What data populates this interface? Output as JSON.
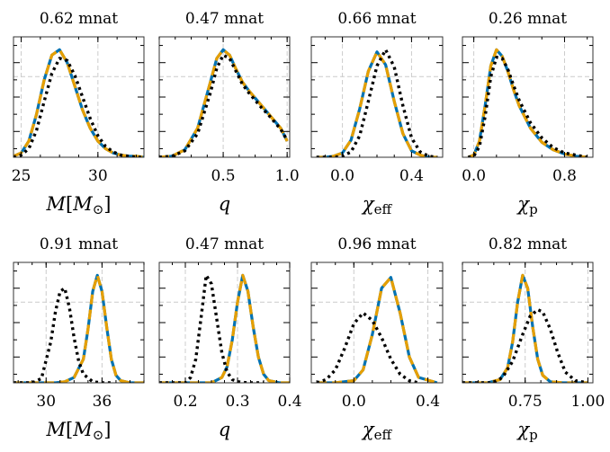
{
  "chart_data": [
    {
      "type": "line",
      "title": "0.62 mnat",
      "xlabel": "M[M⊙]",
      "xlim": [
        24.5,
        33
      ],
      "xticks": [
        25,
        30
      ],
      "xtick_labels": [
        "25",
        "30"
      ],
      "series": [
        {
          "color": "#0072b2",
          "style": "solid",
          "x": [
            24.5,
            25,
            25.5,
            26,
            26.5,
            27,
            27.5,
            28,
            28.5,
            29,
            29.5,
            30,
            30.5,
            31,
            31.5,
            32,
            32.5,
            33
          ],
          "y": [
            0.01,
            0.04,
            0.15,
            0.4,
            0.72,
            0.95,
            1.0,
            0.88,
            0.66,
            0.44,
            0.27,
            0.15,
            0.08,
            0.04,
            0.02,
            0.01,
            0.01,
            0.0
          ]
        },
        {
          "color": "#e69f00",
          "style": "dashed",
          "x": [
            24.5,
            25,
            25.5,
            26,
            26.5,
            27,
            27.5,
            28,
            28.5,
            29,
            29.5,
            30,
            30.5,
            31,
            31.5,
            32,
            32.5,
            33
          ],
          "y": [
            0.01,
            0.04,
            0.15,
            0.4,
            0.72,
            0.95,
            1.0,
            0.88,
            0.66,
            0.44,
            0.27,
            0.15,
            0.08,
            0.04,
            0.02,
            0.01,
            0.01,
            0.0
          ]
        },
        {
          "color": "#000000",
          "style": "dotted",
          "x": [
            24.5,
            25,
            25.5,
            26,
            26.5,
            27,
            27.5,
            28,
            28.5,
            29,
            29.5,
            30,
            30.5,
            31,
            31.5,
            32,
            32.5,
            33
          ],
          "y": [
            0.0,
            0.02,
            0.08,
            0.25,
            0.52,
            0.78,
            0.92,
            0.9,
            0.76,
            0.56,
            0.36,
            0.2,
            0.1,
            0.05,
            0.02,
            0.01,
            0.0,
            0.0
          ]
        }
      ]
    },
    {
      "type": "line",
      "title": "0.47 mnat",
      "xlabel": "q",
      "xlim": [
        0.0,
        1.02
      ],
      "xticks": [
        0.5,
        1.0
      ],
      "xtick_labels": [
        "0.5",
        "1.0"
      ],
      "series": [
        {
          "color": "#0072b2",
          "style": "solid",
          "x": [
            0.0,
            0.1,
            0.2,
            0.3,
            0.4,
            0.45,
            0.5,
            0.55,
            0.6,
            0.65,
            0.7,
            0.75,
            0.8,
            0.85,
            0.9,
            0.95,
            1.0
          ],
          "y": [
            0.0,
            0.01,
            0.07,
            0.27,
            0.7,
            0.92,
            1.0,
            0.95,
            0.82,
            0.7,
            0.62,
            0.55,
            0.48,
            0.41,
            0.34,
            0.27,
            0.15
          ]
        },
        {
          "color": "#e69f00",
          "style": "dashed",
          "x": [
            0.0,
            0.1,
            0.2,
            0.3,
            0.4,
            0.45,
            0.5,
            0.55,
            0.6,
            0.65,
            0.7,
            0.75,
            0.8,
            0.85,
            0.9,
            0.95,
            1.0
          ],
          "y": [
            0.0,
            0.01,
            0.07,
            0.27,
            0.7,
            0.92,
            1.0,
            0.95,
            0.82,
            0.7,
            0.62,
            0.55,
            0.48,
            0.41,
            0.34,
            0.27,
            0.15
          ]
        },
        {
          "color": "#000000",
          "style": "dotted",
          "x": [
            0.0,
            0.1,
            0.2,
            0.3,
            0.4,
            0.45,
            0.5,
            0.55,
            0.6,
            0.65,
            0.7,
            0.75,
            0.8,
            0.85,
            0.9,
            0.95,
            1.0
          ],
          "y": [
            0.0,
            0.01,
            0.06,
            0.22,
            0.6,
            0.83,
            0.95,
            0.92,
            0.8,
            0.68,
            0.6,
            0.53,
            0.46,
            0.4,
            0.33,
            0.26,
            0.16
          ]
        }
      ]
    },
    {
      "type": "line",
      "title": "0.66 mnat",
      "xlabel": "χeff",
      "xlim": [
        -0.18,
        0.58
      ],
      "xticks": [
        0.0,
        0.4
      ],
      "xtick_labels": [
        "0.0",
        "0.4"
      ],
      "series": [
        {
          "color": "#0072b2",
          "style": "solid",
          "x": [
            -0.15,
            -0.1,
            -0.05,
            0.0,
            0.05,
            0.1,
            0.15,
            0.2,
            0.25,
            0.3,
            0.35,
            0.4,
            0.45,
            0.5,
            0.55
          ],
          "y": [
            0.0,
            0.0,
            0.01,
            0.04,
            0.16,
            0.45,
            0.8,
            0.98,
            0.86,
            0.52,
            0.22,
            0.06,
            0.02,
            0.0,
            0.0
          ]
        },
        {
          "color": "#e69f00",
          "style": "dashed",
          "x": [
            -0.15,
            -0.1,
            -0.05,
            0.0,
            0.05,
            0.1,
            0.15,
            0.2,
            0.25,
            0.3,
            0.35,
            0.4,
            0.45,
            0.5,
            0.55
          ],
          "y": [
            0.0,
            0.0,
            0.01,
            0.04,
            0.16,
            0.45,
            0.8,
            0.98,
            0.86,
            0.52,
            0.22,
            0.06,
            0.02,
            0.0,
            0.0
          ]
        },
        {
          "color": "#000000",
          "style": "dotted",
          "x": [
            -0.15,
            -0.1,
            -0.05,
            0.0,
            0.05,
            0.1,
            0.15,
            0.2,
            0.25,
            0.3,
            0.35,
            0.4,
            0.45,
            0.5,
            0.55
          ],
          "y": [
            0.0,
            0.0,
            0.0,
            0.01,
            0.05,
            0.2,
            0.52,
            0.85,
            1.0,
            0.84,
            0.48,
            0.18,
            0.05,
            0.01,
            0.0
          ]
        }
      ]
    },
    {
      "type": "line",
      "title": "0.26 mnat",
      "xlabel": "χp",
      "xlim": [
        -0.1,
        1.05
      ],
      "xticks": [
        0.0,
        0.8
      ],
      "xtick_labels": [
        "0.0",
        "0.8"
      ],
      "series": [
        {
          "color": "#0072b2",
          "style": "solid",
          "x": [
            -0.05,
            0.0,
            0.05,
            0.1,
            0.15,
            0.2,
            0.25,
            0.3,
            0.35,
            0.4,
            0.5,
            0.6,
            0.7,
            0.8,
            0.9,
            1.0
          ],
          "y": [
            0.0,
            0.02,
            0.15,
            0.48,
            0.85,
            1.0,
            0.94,
            0.8,
            0.63,
            0.48,
            0.27,
            0.14,
            0.07,
            0.03,
            0.01,
            0.0
          ]
        },
        {
          "color": "#e69f00",
          "style": "dashed",
          "x": [
            -0.05,
            0.0,
            0.05,
            0.1,
            0.15,
            0.2,
            0.25,
            0.3,
            0.35,
            0.4,
            0.5,
            0.6,
            0.7,
            0.8,
            0.9,
            1.0
          ],
          "y": [
            0.0,
            0.02,
            0.15,
            0.48,
            0.85,
            1.0,
            0.94,
            0.8,
            0.63,
            0.48,
            0.27,
            0.14,
            0.07,
            0.03,
            0.01,
            0.0
          ]
        },
        {
          "color": "#000000",
          "style": "dotted",
          "x": [
            -0.05,
            0.0,
            0.05,
            0.1,
            0.15,
            0.2,
            0.25,
            0.3,
            0.35,
            0.4,
            0.5,
            0.6,
            0.7,
            0.8,
            0.9,
            1.0
          ],
          "y": [
            0.0,
            0.01,
            0.1,
            0.38,
            0.75,
            0.93,
            0.92,
            0.82,
            0.67,
            0.53,
            0.32,
            0.18,
            0.09,
            0.04,
            0.02,
            0.0
          ]
        }
      ]
    },
    {
      "type": "line",
      "title": "0.91 mnat",
      "xlabel": "M[M⊙]",
      "xlim": [
        26.5,
        40.5
      ],
      "xticks": [
        30,
        36
      ],
      "xtick_labels": [
        "30",
        "36"
      ],
      "series": [
        {
          "color": "#0072b2",
          "style": "solid",
          "x": [
            26.5,
            30,
            31,
            32,
            33,
            34,
            34.5,
            35,
            35.5,
            36,
            36.5,
            37,
            37.5,
            38,
            39,
            40.5
          ],
          "y": [
            0.0,
            0.0,
            0.0,
            0.01,
            0.05,
            0.22,
            0.5,
            0.85,
            1.0,
            0.85,
            0.52,
            0.22,
            0.07,
            0.02,
            0.0,
            0.0
          ]
        },
        {
          "color": "#e69f00",
          "style": "dashed",
          "x": [
            26.5,
            30,
            31,
            32,
            33,
            34,
            34.5,
            35,
            35.5,
            36,
            36.5,
            37,
            37.5,
            38,
            39,
            40.5
          ],
          "y": [
            0.0,
            0.0,
            0.0,
            0.01,
            0.05,
            0.22,
            0.5,
            0.85,
            1.0,
            0.85,
            0.52,
            0.22,
            0.07,
            0.02,
            0.0,
            0.0
          ]
        },
        {
          "color": "#000000",
          "style": "dotted",
          "x": [
            26.5,
            27.5,
            28.5,
            29.5,
            30.5,
            31,
            31.5,
            32,
            32.5,
            33,
            33.5,
            34,
            35,
            36,
            37
          ],
          "y": [
            0.0,
            0.0,
            0.0,
            0.04,
            0.38,
            0.66,
            0.85,
            0.88,
            0.7,
            0.42,
            0.2,
            0.08,
            0.01,
            0.0,
            0.0
          ]
        }
      ]
    },
    {
      "type": "line",
      "title": "0.47 mnat",
      "xlabel": "q",
      "xlim": [
        0.15,
        0.4
      ],
      "xticks": [
        0.2,
        0.3,
        0.4
      ],
      "xtick_labels": [
        "0.2",
        "0.3",
        "0.4"
      ],
      "series": [
        {
          "color": "#0072b2",
          "style": "solid",
          "x": [
            0.15,
            0.25,
            0.27,
            0.28,
            0.29,
            0.3,
            0.31,
            0.32,
            0.33,
            0.34,
            0.35,
            0.36,
            0.38,
            0.4
          ],
          "y": [
            0.0,
            0.0,
            0.05,
            0.15,
            0.4,
            0.75,
            1.0,
            0.85,
            0.52,
            0.24,
            0.08,
            0.02,
            0.0,
            0.0
          ]
        },
        {
          "color": "#e69f00",
          "style": "dashed",
          "x": [
            0.15,
            0.25,
            0.27,
            0.28,
            0.29,
            0.3,
            0.31,
            0.32,
            0.33,
            0.34,
            0.35,
            0.36,
            0.38,
            0.4
          ],
          "y": [
            0.0,
            0.0,
            0.05,
            0.15,
            0.4,
            0.75,
            1.0,
            0.85,
            0.52,
            0.24,
            0.08,
            0.02,
            0.0,
            0.0
          ]
        },
        {
          "color": "#000000",
          "style": "dotted",
          "x": [
            0.15,
            0.2,
            0.21,
            0.22,
            0.23,
            0.24,
            0.25,
            0.26,
            0.27,
            0.28,
            0.29,
            0.3,
            0.32,
            0.35
          ],
          "y": [
            0.0,
            0.0,
            0.05,
            0.22,
            0.6,
            1.0,
            0.92,
            0.6,
            0.28,
            0.1,
            0.03,
            0.01,
            0.0,
            0.0
          ]
        }
      ]
    },
    {
      "type": "line",
      "title": "0.96 mnat",
      "xlabel": "χeff",
      "xlim": [
        -0.23,
        0.48
      ],
      "xticks": [
        0.0,
        0.4
      ],
      "xtick_labels": [
        "0.0",
        "0.4"
      ],
      "series": [
        {
          "color": "#0072b2",
          "style": "solid",
          "x": [
            -0.2,
            -0.1,
            0.0,
            0.05,
            0.1,
            0.15,
            0.2,
            0.25,
            0.3,
            0.35,
            0.45
          ],
          "y": [
            0.0,
            0.0,
            0.02,
            0.12,
            0.45,
            0.88,
            0.98,
            0.65,
            0.24,
            0.05,
            0.0
          ]
        },
        {
          "color": "#e69f00",
          "style": "dashed",
          "x": [
            -0.2,
            -0.1,
            0.0,
            0.05,
            0.1,
            0.15,
            0.2,
            0.25,
            0.3,
            0.35,
            0.45
          ],
          "y": [
            0.0,
            0.0,
            0.02,
            0.12,
            0.45,
            0.88,
            0.98,
            0.65,
            0.24,
            0.05,
            0.0
          ]
        },
        {
          "color": "#000000",
          "style": "dotted",
          "x": [
            -0.2,
            -0.15,
            -0.1,
            -0.05,
            0.0,
            0.05,
            0.1,
            0.15,
            0.2,
            0.25,
            0.3,
            0.35
          ],
          "y": [
            0.0,
            0.03,
            0.12,
            0.32,
            0.55,
            0.65,
            0.58,
            0.42,
            0.22,
            0.08,
            0.02,
            0.0
          ]
        }
      ]
    },
    {
      "type": "line",
      "title": "0.82 mnat",
      "xlabel": "χp",
      "xlim": [
        0.5,
        1.02
      ],
      "xticks": [
        0.75,
        1.0
      ],
      "xtick_labels": [
        "0.75",
        "1.00"
      ],
      "series": [
        {
          "color": "#0072b2",
          "style": "solid",
          "x": [
            0.5,
            0.6,
            0.65,
            0.68,
            0.7,
            0.72,
            0.74,
            0.76,
            0.78,
            0.8,
            0.82,
            0.85,
            0.9,
            1.0
          ],
          "y": [
            0.0,
            0.0,
            0.03,
            0.14,
            0.38,
            0.75,
            1.0,
            0.88,
            0.52,
            0.22,
            0.07,
            0.01,
            0.0,
            0.0
          ]
        },
        {
          "color": "#e69f00",
          "style": "dashed",
          "x": [
            0.5,
            0.6,
            0.65,
            0.68,
            0.7,
            0.72,
            0.74,
            0.76,
            0.78,
            0.8,
            0.82,
            0.85,
            0.9,
            1.0
          ],
          "y": [
            0.0,
            0.0,
            0.03,
            0.14,
            0.38,
            0.75,
            1.0,
            0.88,
            0.52,
            0.22,
            0.07,
            0.01,
            0.0,
            0.0
          ]
        },
        {
          "color": "#000000",
          "style": "dotted",
          "x": [
            0.5,
            0.62,
            0.66,
            0.7,
            0.74,
            0.77,
            0.8,
            0.82,
            0.85,
            0.88,
            0.91,
            0.95,
            1.0
          ],
          "y": [
            0.0,
            0.0,
            0.05,
            0.2,
            0.45,
            0.62,
            0.68,
            0.66,
            0.5,
            0.28,
            0.1,
            0.02,
            0.0
          ]
        }
      ]
    }
  ]
}
